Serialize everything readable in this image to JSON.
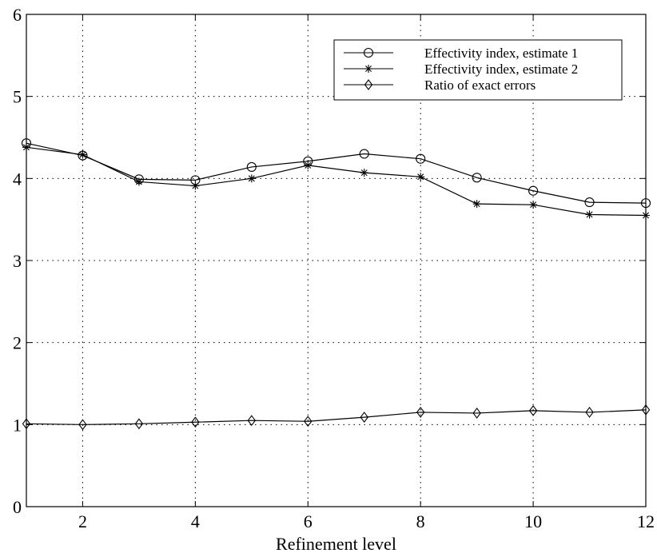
{
  "chart_data": {
    "type": "line",
    "title": "",
    "xlabel": "Refinement level",
    "ylabel": "",
    "xlim": [
      1,
      12
    ],
    "ylim": [
      0,
      6
    ],
    "xticks": [
      2,
      4,
      6,
      8,
      10,
      12
    ],
    "yticks": [
      0,
      1,
      2,
      3,
      4,
      5,
      6
    ],
    "grid": true,
    "legend_position": "top-right",
    "x": [
      1,
      2,
      3,
      4,
      5,
      6,
      7,
      8,
      9,
      10,
      11,
      12
    ],
    "series": [
      {
        "name": "Effectivity index, estimate 1",
        "marker": "circle",
        "values": [
          4.43,
          4.28,
          3.99,
          3.98,
          4.14,
          4.21,
          4.3,
          4.24,
          4.01,
          3.85,
          3.71,
          3.7
        ]
      },
      {
        "name": "Effectivity index, estimate 2",
        "marker": "star",
        "values": [
          4.38,
          4.29,
          3.96,
          3.91,
          4.0,
          4.16,
          4.07,
          4.02,
          3.69,
          3.68,
          3.56,
          3.55
        ]
      },
      {
        "name": "Ratio of exact errors",
        "marker": "diamond",
        "values": [
          1.01,
          1.0,
          1.01,
          1.03,
          1.05,
          1.04,
          1.09,
          1.15,
          1.14,
          1.17,
          1.15,
          1.18
        ]
      }
    ]
  }
}
